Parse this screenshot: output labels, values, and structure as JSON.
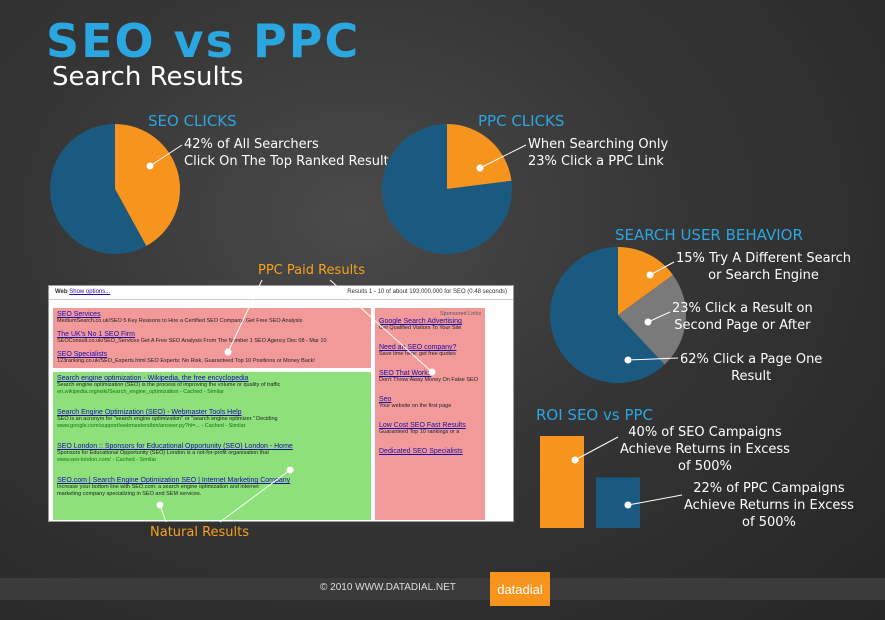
{
  "header": {
    "title": "SEO vs PPC",
    "subtitle": "Search Results"
  },
  "colors": {
    "blue": "#1b5a80",
    "orange": "#f7941d",
    "gray": "#7a7a7a",
    "accent": "#2aa6e0"
  },
  "chart_data": [
    {
      "type": "pie",
      "title": "SEO CLICKS",
      "slices": [
        {
          "label": "42% of All Searchers Click On The Top Ranked Result",
          "value": 42,
          "color": "#f7941d"
        },
        {
          "label": "",
          "value": 58,
          "color": "#1b5a80"
        }
      ],
      "annotation": [
        "42% of All Searchers",
        "Click On The Top Ranked Result"
      ]
    },
    {
      "type": "pie",
      "title": "PPC CLICKS",
      "slices": [
        {
          "label": "When Searching Only 23% Click a PPC Link",
          "value": 23,
          "color": "#f7941d"
        },
        {
          "label": "",
          "value": 77,
          "color": "#1b5a80"
        }
      ],
      "annotation": [
        "When Searching Only",
        "23% Click a PPC Link"
      ]
    },
    {
      "type": "pie",
      "title": "SEARCH USER BEHAVIOR",
      "slices": [
        {
          "label": "15% Try A Different Search or Search Engine",
          "value": 15,
          "color": "#f7941d"
        },
        {
          "label": "23% Click a Result on Second Page or After",
          "value": 23,
          "color": "#7a7a7a"
        },
        {
          "label": "62% Click a Page One Result",
          "value": 62,
          "color": "#1b5a80"
        }
      ],
      "annotations": [
        [
          "15% Try A Different Search",
          "or Search Engine"
        ],
        [
          "23% Click a Result on",
          "Second Page or After"
        ],
        [
          "62% Click a Page One",
          "Result"
        ]
      ]
    },
    {
      "type": "bar",
      "title": "ROI SEO vs PPC",
      "categories": [
        "SEO",
        "PPC"
      ],
      "values": [
        40,
        22
      ],
      "colors": [
        "#f7941d",
        "#1b5a80"
      ],
      "ylim": [
        0,
        40
      ],
      "annotations": [
        [
          "40% of SEO Campaigns",
          "Achieve Returns in Excess",
          "of 500%"
        ],
        [
          "22% of PPC Campaigns",
          "Achieve Returns in Excess",
          "of 500%"
        ]
      ]
    }
  ],
  "serp": {
    "ppc_label": "PPC Paid Results",
    "natural_label": "Natural Results",
    "bar_left": "Web",
    "bar_link": "Show options...",
    "bar_right": "Results 1 - 10 of about 193,000,000 for SEO (0.48 seconds)",
    "sponsored": "Sponsored Links",
    "top_ads": [
      {
        "title": "SEO Services",
        "desc": "MediumSearch.co.uk/SEO    5 Key Reasons to Hire a Certified SEO Company. Get Free SEO Analysis"
      },
      {
        "title": "The UK's No 1 SEO Firm",
        "desc": "SEOConsult.co.uk/SEO_Services    Get A Free SEO Analysis From The Number 1 SEO Agency Dec 08 - Mar 10"
      },
      {
        "title": "SEO Specialists",
        "desc": "123ranking.co.uk/SEO_Experts.html    SEO Experts: No Risk, Guaranteed Top 10 Positions or Money Back!"
      }
    ],
    "natural": [
      {
        "title": "Search engine optimization - Wikipedia, the free encyclopedia",
        "desc": "Search engine optimization (SEO) is the process of improving the volume or quality of traffic",
        "url": "en.wikipedia.org/wiki/Search_engine_optimization - Cached - Similar"
      },
      {
        "title": "Search Engine Optimization (SEO) - Webmaster Tools Help",
        "desc": "SEO is an acronym for \"search engine optimization\" or \"search engine optimizer.\" Deciding",
        "url": "www.google.com/support/webmasters/bin/answer.py?hl=... - Cached - Similar"
      },
      {
        "title": "SEO London :: Sponsors for Educational Opportunity (SEO) London - Home",
        "desc": "Sponsors for Educational Opportunity (SEO) London is a not-for-profit organisation that",
        "url": "www.seo-london.com/ - Cached - Similar"
      },
      {
        "title": "SEO.com | Search Engine Optimization SEO | Internet Marketing Company",
        "desc": "Increase your bottom line with SEO.com: a search engine optimization and internet",
        "url": "marketing company specializing in SEO and SEM services."
      }
    ],
    "side_ads": [
      {
        "title": "Google Search Advertising",
        "desc": "Get Qualified Visitors To Your Site"
      },
      {
        "title": "Need an SEO company?",
        "desc": "Save time here: get free quotes"
      },
      {
        "title": "SEO That Works",
        "desc": "Don't Throw Away Money On False SEO"
      },
      {
        "title": "Seo",
        "desc": "Your website on the first page"
      },
      {
        "title": "Low Cost SEO Fast Results",
        "desc": "Guaranteed Top 10 rankings or a"
      },
      {
        "title": "Dedicated SEO Specialists",
        "desc": ""
      }
    ]
  },
  "footer": {
    "copyright": "© 2010 WWW.DATADIAL.NET",
    "logo": "datadial"
  }
}
